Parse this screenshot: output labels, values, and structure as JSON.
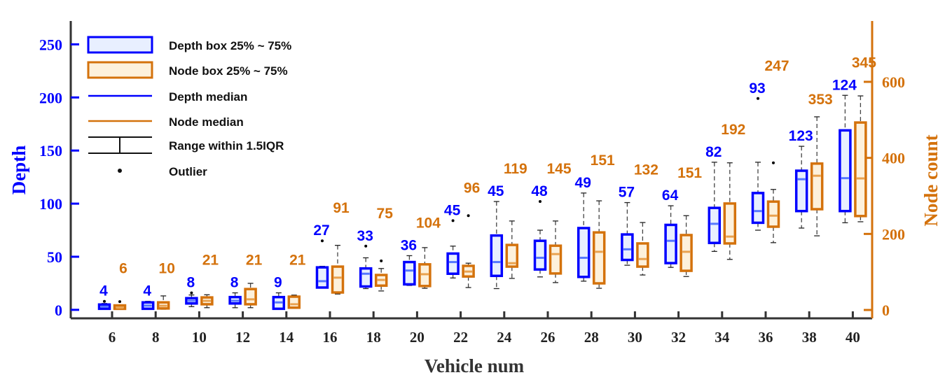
{
  "chart_data": {
    "type": "boxplot",
    "xlabel": "Vehicle num",
    "ylabel_left": "Depth",
    "ylabel_right": "Node count",
    "ylim_left": [
      -8,
      272
    ],
    "ylim_right": [
      -22,
      760
    ],
    "yticks_left": [
      0,
      50,
      100,
      150,
      200,
      250
    ],
    "yticks_right": [
      0,
      200,
      400,
      600
    ],
    "categories": [
      "6",
      "8",
      "10",
      "12",
      "14",
      "16",
      "18",
      "20",
      "22",
      "24",
      "26",
      "28",
      "30",
      "32",
      "34",
      "36",
      "38",
      "40"
    ],
    "colors": {
      "depth": "#0000ff",
      "depth_fill": "#e8efff",
      "depth_median": "#5577ff",
      "node": "#d4720c",
      "node_fill": "#fdf1dc",
      "node_median": "#e9a250",
      "outlier": "#000000"
    },
    "legend": {
      "placement": "top-left",
      "items": [
        "Depth box 25% ~ 75%",
        "Node box 25% ~ 75%",
        "Depth median",
        "Node median",
        "Range within 1.5IQR",
        "Outlier"
      ]
    },
    "depth": [
      {
        "lo": 1,
        "q1": 1,
        "med": 3,
        "q3": 5,
        "hi": 6,
        "out": [
          8
        ]
      },
      {
        "lo": 1,
        "q1": 1,
        "med": 4,
        "q3": 7,
        "hi": 8,
        "out": []
      },
      {
        "lo": 3,
        "q1": 6,
        "med": 8.5,
        "q3": 11,
        "hi": 14,
        "out": [
          16
        ]
      },
      {
        "lo": 2,
        "q1": 6,
        "med": 8.5,
        "q3": 12,
        "hi": 16,
        "out": []
      },
      {
        "lo": 1,
        "q1": 1,
        "med": 7,
        "q3": 12,
        "hi": 16,
        "out": []
      },
      {
        "lo": 21,
        "q1": 21,
        "med": 27,
        "q3": 40,
        "hi": 41,
        "out": [
          65
        ]
      },
      {
        "lo": 20,
        "q1": 22,
        "med": 34,
        "q3": 39,
        "hi": 49,
        "out": [
          60
        ]
      },
      {
        "lo": 23,
        "q1": 24,
        "med": 37,
        "q3": 45,
        "hi": 51,
        "out": []
      },
      {
        "lo": 30,
        "q1": 34,
        "med": 45,
        "q3": 53,
        "hi": 60,
        "out": [
          84
        ]
      },
      {
        "lo": 20,
        "q1": 32,
        "med": 45,
        "q3": 70,
        "hi": 102,
        "out": []
      },
      {
        "lo": 31,
        "q1": 38,
        "med": 49,
        "q3": 65,
        "hi": 75,
        "out": [
          102
        ]
      },
      {
        "lo": 27,
        "q1": 31,
        "med": 49,
        "q3": 77,
        "hi": 110,
        "out": []
      },
      {
        "lo": 42,
        "q1": 47,
        "med": 57,
        "q3": 71,
        "hi": 101,
        "out": []
      },
      {
        "lo": 40,
        "q1": 44,
        "med": 65,
        "q3": 80,
        "hi": 98,
        "out": []
      },
      {
        "lo": 55,
        "q1": 63,
        "med": 81,
        "q3": 96,
        "hi": 139,
        "out": []
      },
      {
        "lo": 75,
        "q1": 82,
        "med": 93,
        "q3": 110,
        "hi": 139,
        "out": [
          199
        ]
      },
      {
        "lo": 77,
        "q1": 93,
        "med": 123,
        "q3": 131,
        "hi": 154,
        "out": []
      },
      {
        "lo": 82,
        "q1": 93,
        "med": 124,
        "q3": 169,
        "hi": 202,
        "out": []
      }
    ],
    "node": [
      {
        "lo": 3,
        "q1": 3,
        "med": 6,
        "q3": 12,
        "hi": 12,
        "out": [
          22
        ]
      },
      {
        "lo": 2,
        "q1": 4,
        "med": 11,
        "q3": 20,
        "hi": 37,
        "out": []
      },
      {
        "lo": 6,
        "q1": 15,
        "med": 24,
        "q3": 33,
        "hi": 40,
        "out": []
      },
      {
        "lo": 6,
        "q1": 15,
        "med": 28,
        "q3": 55,
        "hi": 70,
        "out": []
      },
      {
        "lo": 4,
        "q1": 6,
        "med": 15,
        "q3": 35,
        "hi": 39,
        "out": []
      },
      {
        "lo": 42,
        "q1": 46,
        "med": 85,
        "q3": 114,
        "hi": 170,
        "out": []
      },
      {
        "lo": 50,
        "q1": 64,
        "med": 79,
        "q3": 92,
        "hi": 109,
        "out": [
          129
        ]
      },
      {
        "lo": 57,
        "q1": 63,
        "med": 94,
        "q3": 120,
        "hi": 164,
        "out": []
      },
      {
        "lo": 59,
        "q1": 88,
        "med": 101,
        "q3": 116,
        "hi": 123,
        "out": [
          248
        ]
      },
      {
        "lo": 83,
        "q1": 114,
        "med": 123,
        "q3": 171,
        "hi": 234,
        "out": []
      },
      {
        "lo": 72,
        "q1": 96,
        "med": 147,
        "q3": 169,
        "hi": 234,
        "out": []
      },
      {
        "lo": 57,
        "q1": 70,
        "med": 153,
        "q3": 204,
        "hi": 287,
        "out": []
      },
      {
        "lo": 92,
        "q1": 114,
        "med": 134,
        "q3": 175,
        "hi": 230,
        "out": []
      },
      {
        "lo": 88,
        "q1": 103,
        "med": 153,
        "q3": 197,
        "hi": 248,
        "out": []
      },
      {
        "lo": 133,
        "q1": 175,
        "med": 193,
        "q3": 280,
        "hi": 387,
        "out": []
      },
      {
        "lo": 177,
        "q1": 219,
        "med": 248,
        "q3": 285,
        "hi": 317,
        "out": [
          387
        ]
      },
      {
        "lo": 195,
        "q1": 265,
        "med": 353,
        "q3": 385,
        "hi": 508,
        "out": []
      },
      {
        "lo": 232,
        "q1": 247,
        "med": 346,
        "q3": 493,
        "hi": 563,
        "out": []
      }
    ],
    "depth_labels": [
      "4",
      "4",
      "8",
      "8",
      "9",
      "27",
      "33",
      "36",
      "45",
      "45",
      "48",
      "49",
      "57",
      "64",
      "82",
      "93",
      "123",
      "124"
    ],
    "node_labels": [
      "6",
      "10",
      "21",
      "21",
      "21",
      "91",
      "75",
      "104",
      "96",
      "119",
      "145",
      "151",
      "132",
      "151",
      "192",
      "247",
      "353",
      "345"
    ]
  }
}
